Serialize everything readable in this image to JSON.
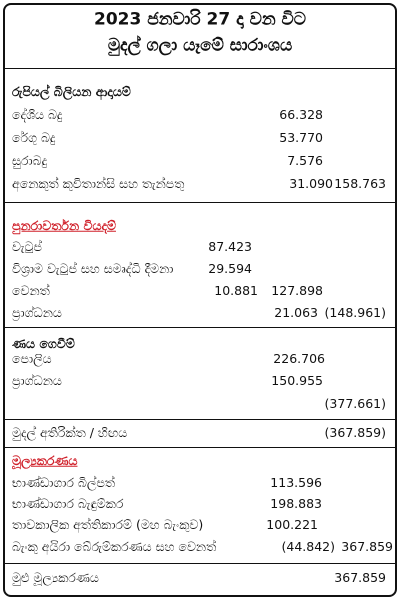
{
  "header": {
    "title": [
      "2023 ජනවාරි 27 දා වන විට",
      "මුදල් ගලා යෑමේ සාරාංශය"
    ]
  },
  "sections": [
    {
      "heading": "රුපියල් බිලියන   ආදායම්",
      "rows": [
        {
          "label": "දේශිය බදු",
          "mid": "66.328"
        },
        {
          "label": "රේගු බදු",
          "mid": "53.770"
        },
        {
          "label": "සුරාබදු",
          "mid": "7.576"
        },
        {
          "label": "අනෙකුත් කුවිතාන්සි සහ තැන්පතු",
          "mid": "31.090",
          "total": "158.763"
        }
      ]
    },
    {
      "heading": "පුනරාවර්තන වියදම්",
      "rows": [
        {
          "label": "වැටුප්",
          "mid": "87.423"
        },
        {
          "label": "විශ්‍රාම වැටුප් සහ සමෘද්ධි දීමනා",
          "mid": "29.594"
        },
        {
          "label": "වෙනත්",
          "mid": "10.881",
          "total": "127.898"
        },
        {
          "label": "ප්‍රාග්ධනය",
          "mid": "21.063",
          "total": "(148.961)"
        }
      ]
    },
    {
      "heading": "ණය ගෙවීම්",
      "rows": [
        {
          "label": "පොලිය",
          "mid": "226.706"
        },
        {
          "label": "ප්‍රාග්ධනය",
          "mid": "150.955"
        },
        {
          "total": "(377.661)"
        }
      ]
    },
    {
      "rows": [
        {
          "label": "මුදල් අතිරික්ත / හිඟය",
          "total": "(367.859)"
        }
      ]
    },
    {
      "heading": "මූල්‍යකරණය",
      "rows": [
        {
          "label": "භාණ්ඩාගාර බිල්පත්",
          "mid": "113.596"
        },
        {
          "label": "භාණ්ඩාගාර බැඳුම්කර",
          "mid": "198.883"
        },
        {
          "label": "තාවකාලික අත්තිකාරම් (මහ බැංකුව)",
          "mid": "100.221"
        },
        {
          "label": "බැංකු අයිරා බේරුම්කරණය සහ වෙනත්",
          "mid": "(44.842)",
          "total": "367.859"
        }
      ]
    },
    {
      "rows": [
        {
          "label": "මුළු මූල්‍යකරණය",
          "total": "367.859"
        }
      ]
    }
  ]
}
